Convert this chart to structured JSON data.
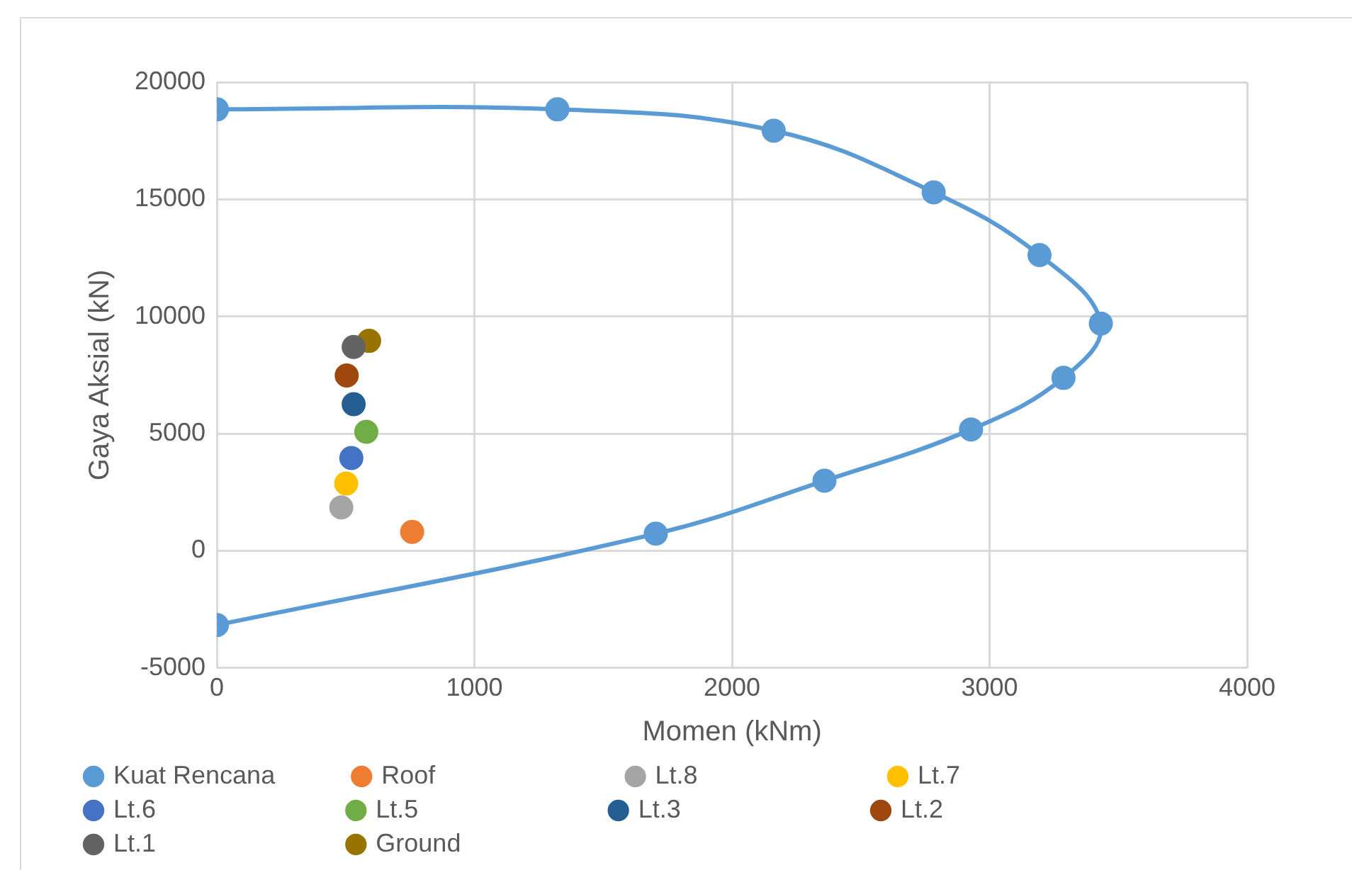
{
  "chart_data": {
    "type": "scatter",
    "xlabel": "Momen (kNm)",
    "ylabel": "Gaya Aksial (kN)",
    "xlim": [
      0,
      4000
    ],
    "xticks": [
      0,
      1000,
      2000,
      3000,
      4000
    ],
    "ylim": [
      -5000,
      20000
    ],
    "yticks": [
      -5000,
      0,
      5000,
      10000,
      15000,
      20000
    ],
    "grid": true,
    "legend": "bottom",
    "marker": "circle",
    "series": [
      {
        "name": "Kuat Rencana",
        "type": "line",
        "color": "#5b9bd5",
        "x": [
          0,
          1322,
          2162,
          2783,
          3194,
          3432,
          3287,
          2928,
          2359,
          1704,
          0
        ],
        "values": [
          18840,
          18840,
          17930,
          15300,
          12620,
          9700,
          7380,
          5180,
          2990,
          730,
          -3170
        ]
      },
      {
        "name": "Roof",
        "color": "#ed7d31",
        "x": [
          758
        ],
        "values": [
          810
        ]
      },
      {
        "name": "Lt.8",
        "color": "#a5a5a5",
        "x": [
          483
        ],
        "values": [
          1850
        ]
      },
      {
        "name": "Lt.7",
        "color": "#ffc000",
        "x": [
          502
        ],
        "values": [
          2870
        ]
      },
      {
        "name": "Lt.6",
        "color": "#4472c4",
        "x": [
          522
        ],
        "values": [
          3960
        ]
      },
      {
        "name": "Lt.5",
        "color": "#70ad47",
        "x": [
          580
        ],
        "values": [
          5080
        ]
      },
      {
        "name": "Lt.3",
        "color": "#255e91",
        "x": [
          531
        ],
        "values": [
          6260
        ]
      },
      {
        "name": "Lt.2",
        "color": "#9e480e",
        "x": [
          504
        ],
        "values": [
          7480
        ]
      },
      {
        "name": "Lt.1",
        "color": "#636363",
        "x": [
          531
        ],
        "values": [
          8700
        ]
      },
      {
        "name": "Ground",
        "color": "#997300",
        "x": [
          591
        ],
        "values": [
          8960
        ]
      }
    ]
  }
}
